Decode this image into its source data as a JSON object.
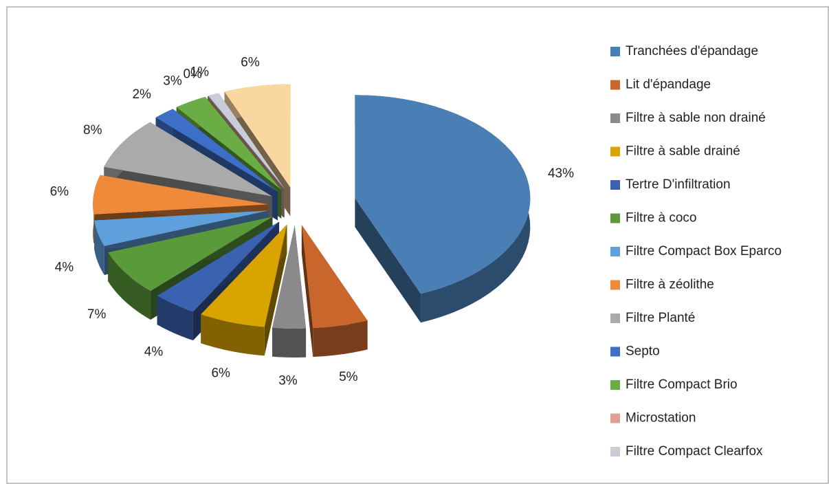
{
  "chart_data": {
    "type": "pie",
    "categories": [
      "Tranchées d'épandage",
      "Lit d'épandage",
      "Filtre à sable non drainé",
      "Filtre à sable drainé",
      "Tertre D'infiltration",
      "Filtre à coco",
      "Filtre Compact Box Eparco",
      "Filtre à zéolithe",
      "Filtre Planté",
      "Septo",
      "Filtre Compact Brio",
      "Microstation",
      "Filtre Compact Clearfox",
      null
    ],
    "values": [
      43,
      5,
      3,
      6,
      4,
      7,
      4,
      6,
      8,
      2,
      3,
      0,
      1,
      6
    ],
    "value_labels": [
      "43%",
      "5%",
      "3%",
      "6%",
      "4%",
      "7%",
      "4%",
      "6%",
      "8%",
      "2%",
      "3%",
      "0%",
      "1%",
      "6%"
    ],
    "colors": [
      "#4a7fb5",
      "#c8662b",
      "#8a8a8a",
      "#d9a300",
      "#3b62b0",
      "#5a9a3b",
      "#5f9fdc",
      "#ee8a3a",
      "#aaaaaa",
      "#3e6fc8",
      "#6aad45",
      "#e0a090",
      "#c8cdd8",
      "#fbd7a0"
    ],
    "legend": "right"
  }
}
